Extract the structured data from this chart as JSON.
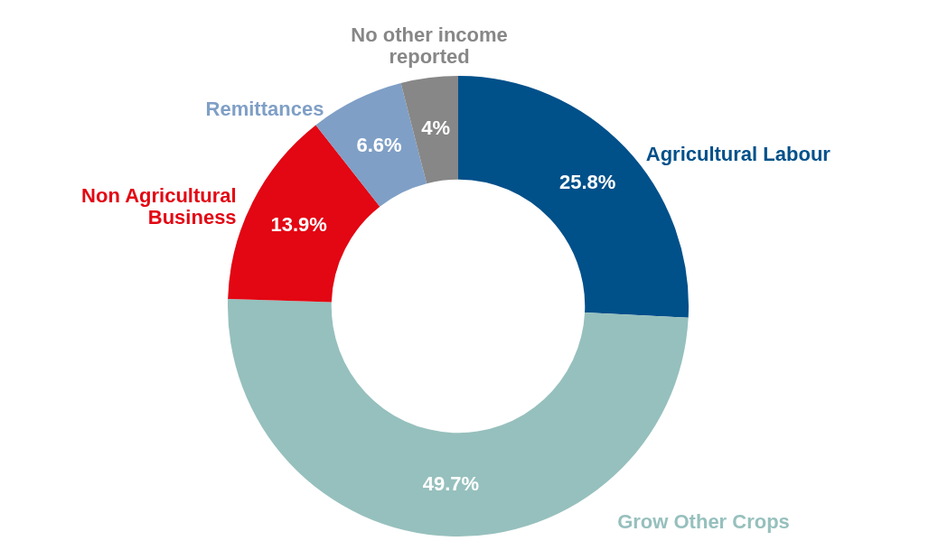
{
  "chart_data": {
    "type": "donut",
    "categories": [
      "Agricultural Labour",
      "Grow Other Crops",
      "Non Agricultural Business",
      "Remittances",
      "No other income reported"
    ],
    "values": [
      25.8,
      49.7,
      13.9,
      6.6,
      4
    ],
    "value_labels": [
      "25.8%",
      "49.7%",
      "13.9%",
      "6.6%",
      "4%"
    ],
    "colors": [
      "#00508a",
      "#96c0bd",
      "#e30613",
      "#7f9fc6",
      "#878787"
    ],
    "legend": false
  }
}
